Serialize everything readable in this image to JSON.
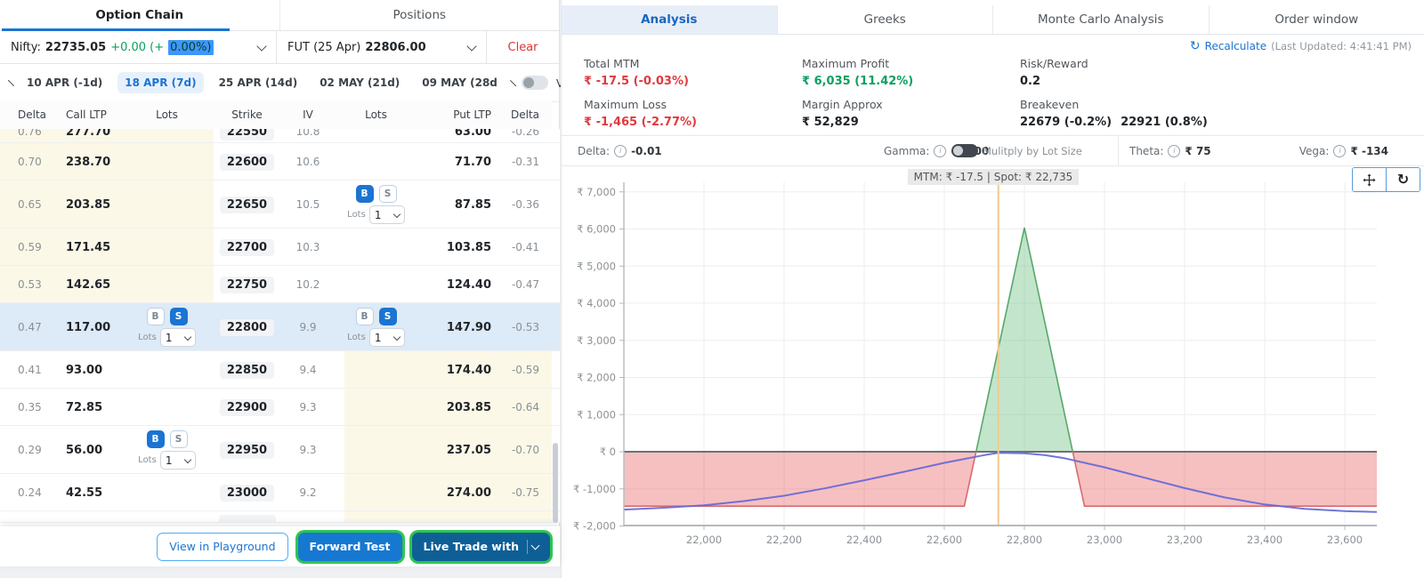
{
  "left_panel": {
    "tabs": [
      {
        "label": "Option Chain",
        "active": true
      },
      {
        "label": "Positions",
        "active": false
      }
    ],
    "instrument": {
      "name": "Nifty:",
      "price": "22735.05",
      "change_prefix": "+0.00 (+",
      "change_selected": "0.00%)"
    },
    "future": {
      "label": "FUT (25 Apr)",
      "price": "22806.00"
    },
    "clear_label": "Clear",
    "expiries": [
      {
        "label": "10 APR (-1d)",
        "selected": false
      },
      {
        "label": "18 APR (7d)",
        "selected": true
      },
      {
        "label": "25 APR (14d)",
        "selected": false
      },
      {
        "label": "02 MAY (21d)",
        "selected": false
      },
      {
        "label": "09 MAY (28d",
        "selected": false
      }
    ],
    "view_positions_label": "View positions",
    "table": {
      "headers": [
        "Delta",
        "Call LTP",
        "Lots",
        "Strike",
        "IV",
        "Lots",
        "Put LTP",
        "Delta"
      ],
      "lots_label": "Lots",
      "lots_value": "1",
      "buy_label": "B",
      "sell_label": "S",
      "rows": [
        {
          "delta": "0.76",
          "call_ltp": "277.70",
          "strike": "22550",
          "iv": "10.8",
          "put_ltp": "63.00",
          "put_delta": "-0.26",
          "call_itm": true,
          "clip": "top"
        },
        {
          "delta": "0.70",
          "call_ltp": "238.70",
          "strike": "22600",
          "iv": "10.6",
          "put_ltp": "71.70",
          "put_delta": "-0.31",
          "call_itm": true
        },
        {
          "delta": "0.65",
          "call_ltp": "203.85",
          "strike": "22650",
          "iv": "10.5",
          "put_ltp": "87.85",
          "put_delta": "-0.36",
          "call_itm": true,
          "put_trade": "B"
        },
        {
          "delta": "0.59",
          "call_ltp": "171.45",
          "strike": "22700",
          "iv": "10.3",
          "put_ltp": "103.85",
          "put_delta": "-0.41",
          "call_itm": true
        },
        {
          "delta": "0.53",
          "call_ltp": "142.65",
          "strike": "22750",
          "iv": "10.2",
          "put_ltp": "124.40",
          "put_delta": "-0.47",
          "call_itm": true
        },
        {
          "delta": "0.47",
          "call_ltp": "117.00",
          "strike": "22800",
          "iv": "9.9",
          "put_ltp": "147.90",
          "put_delta": "-0.53",
          "selected": true,
          "call_trade": "S",
          "put_trade": "S"
        },
        {
          "delta": "0.41",
          "call_ltp": "93.00",
          "strike": "22850",
          "iv": "9.4",
          "put_ltp": "174.40",
          "put_delta": "-0.59",
          "put_itm": true
        },
        {
          "delta": "0.35",
          "call_ltp": "72.85",
          "strike": "22900",
          "iv": "9.3",
          "put_ltp": "203.85",
          "put_delta": "-0.64",
          "put_itm": true
        },
        {
          "delta": "0.29",
          "call_ltp": "56.00",
          "strike": "22950",
          "iv": "9.3",
          "put_ltp": "237.05",
          "put_delta": "-0.70",
          "put_itm": true,
          "call_trade": "B"
        },
        {
          "delta": "0.24",
          "call_ltp": "42.55",
          "strike": "23000",
          "iv": "9.2",
          "put_ltp": "274.00",
          "put_delta": "-0.75",
          "put_itm": true
        },
        {
          "delta": "",
          "call_ltp": "",
          "strike": "",
          "iv": "",
          "put_ltp": "",
          "put_delta": "",
          "put_itm": true,
          "clip": "bottom"
        }
      ]
    },
    "footer": {
      "playground": "View in Playground",
      "forward_test": "Forward Test",
      "live_trade": "Live Trade with"
    }
  },
  "right_panel": {
    "tabs": [
      {
        "label": "Analysis",
        "active": true
      },
      {
        "label": "Greeks",
        "active": false
      },
      {
        "label": "Monte Carlo Analysis",
        "active": false
      },
      {
        "label": "Order window",
        "active": false
      }
    ],
    "recalculate": {
      "label": "Recalculate",
      "last_updated": "(Last Updated: 4:41:41 PM)"
    },
    "metrics": {
      "total_mtm": {
        "label": "Total MTM",
        "value": "₹ -17.5 (-0.03%)"
      },
      "max_profit": {
        "label": "Maximum Profit",
        "value": "₹ 6,035 (11.42%)"
      },
      "risk_reward": {
        "label": "Risk/Reward",
        "value": "0.2"
      },
      "max_loss": {
        "label": "Maximum Loss",
        "value": "₹ -1,465 (-2.77%)"
      },
      "margin": {
        "label": "Margin Approx",
        "value": "₹ 52,829"
      },
      "breakeven": {
        "label": "Breakeven",
        "value1": "22679 (-0.2%)",
        "value2": "22921 (0.8%)"
      }
    },
    "greeks": {
      "delta_label": "Delta:",
      "delta": "-0.01",
      "gamma_label": "Gamma:",
      "gamma": "-0.000",
      "toggle_label": "Mulitply by Lot Size",
      "theta_label": "Theta:",
      "theta": "₹ 75",
      "vega_label": "Vega:",
      "vega": "₹ -134"
    }
  },
  "chart_data": {
    "type": "area",
    "title": "MTM: ₹ -17.5   |   Spot: ₹ 22,735",
    "x_domain": [
      21800,
      23680
    ],
    "x_ticks": [
      22000,
      22200,
      22400,
      22600,
      22800,
      23000,
      23200,
      23400,
      23600
    ],
    "y_ticks": [
      7000,
      6000,
      5000,
      4000,
      3000,
      2000,
      1000,
      0,
      -1000,
      -2000
    ],
    "spot": 22735,
    "breakevens": [
      22679,
      22921
    ],
    "max_profit": 6035,
    "max_loss": -1465,
    "expiry_payoff": [
      [
        21800,
        -1465
      ],
      [
        22650,
        -1465
      ],
      [
        22800,
        6035
      ],
      [
        22950,
        -1465
      ],
      [
        23680,
        -1465
      ]
    ],
    "t0_curve": [
      [
        21800,
        -1560
      ],
      [
        21900,
        -1510
      ],
      [
        22000,
        -1445
      ],
      [
        22100,
        -1330
      ],
      [
        22200,
        -1185
      ],
      [
        22300,
        -990
      ],
      [
        22400,
        -770
      ],
      [
        22500,
        -540
      ],
      [
        22600,
        -300
      ],
      [
        22700,
        -90
      ],
      [
        22735,
        -30
      ],
      [
        22800,
        -40
      ],
      [
        22850,
        -90
      ],
      [
        22900,
        -175
      ],
      [
        23000,
        -420
      ],
      [
        23100,
        -700
      ],
      [
        23200,
        -980
      ],
      [
        23300,
        -1230
      ],
      [
        23400,
        -1420
      ],
      [
        23500,
        -1540
      ],
      [
        23600,
        -1600
      ],
      [
        23680,
        -1625
      ]
    ],
    "colors": {
      "profit_fill": "rgba(96,186,120,0.38)",
      "profit_stroke": "#56a868",
      "loss_fill": "rgba(233,104,107,0.42)",
      "loss_stroke": "#d96a6d",
      "t0_line": "#6568d8",
      "spot_line": "#f3c98e",
      "zero_line": "#6e7075",
      "grid": "#ededf0",
      "axis": "#b5b9bd",
      "tick_text": "#8b9196"
    }
  }
}
